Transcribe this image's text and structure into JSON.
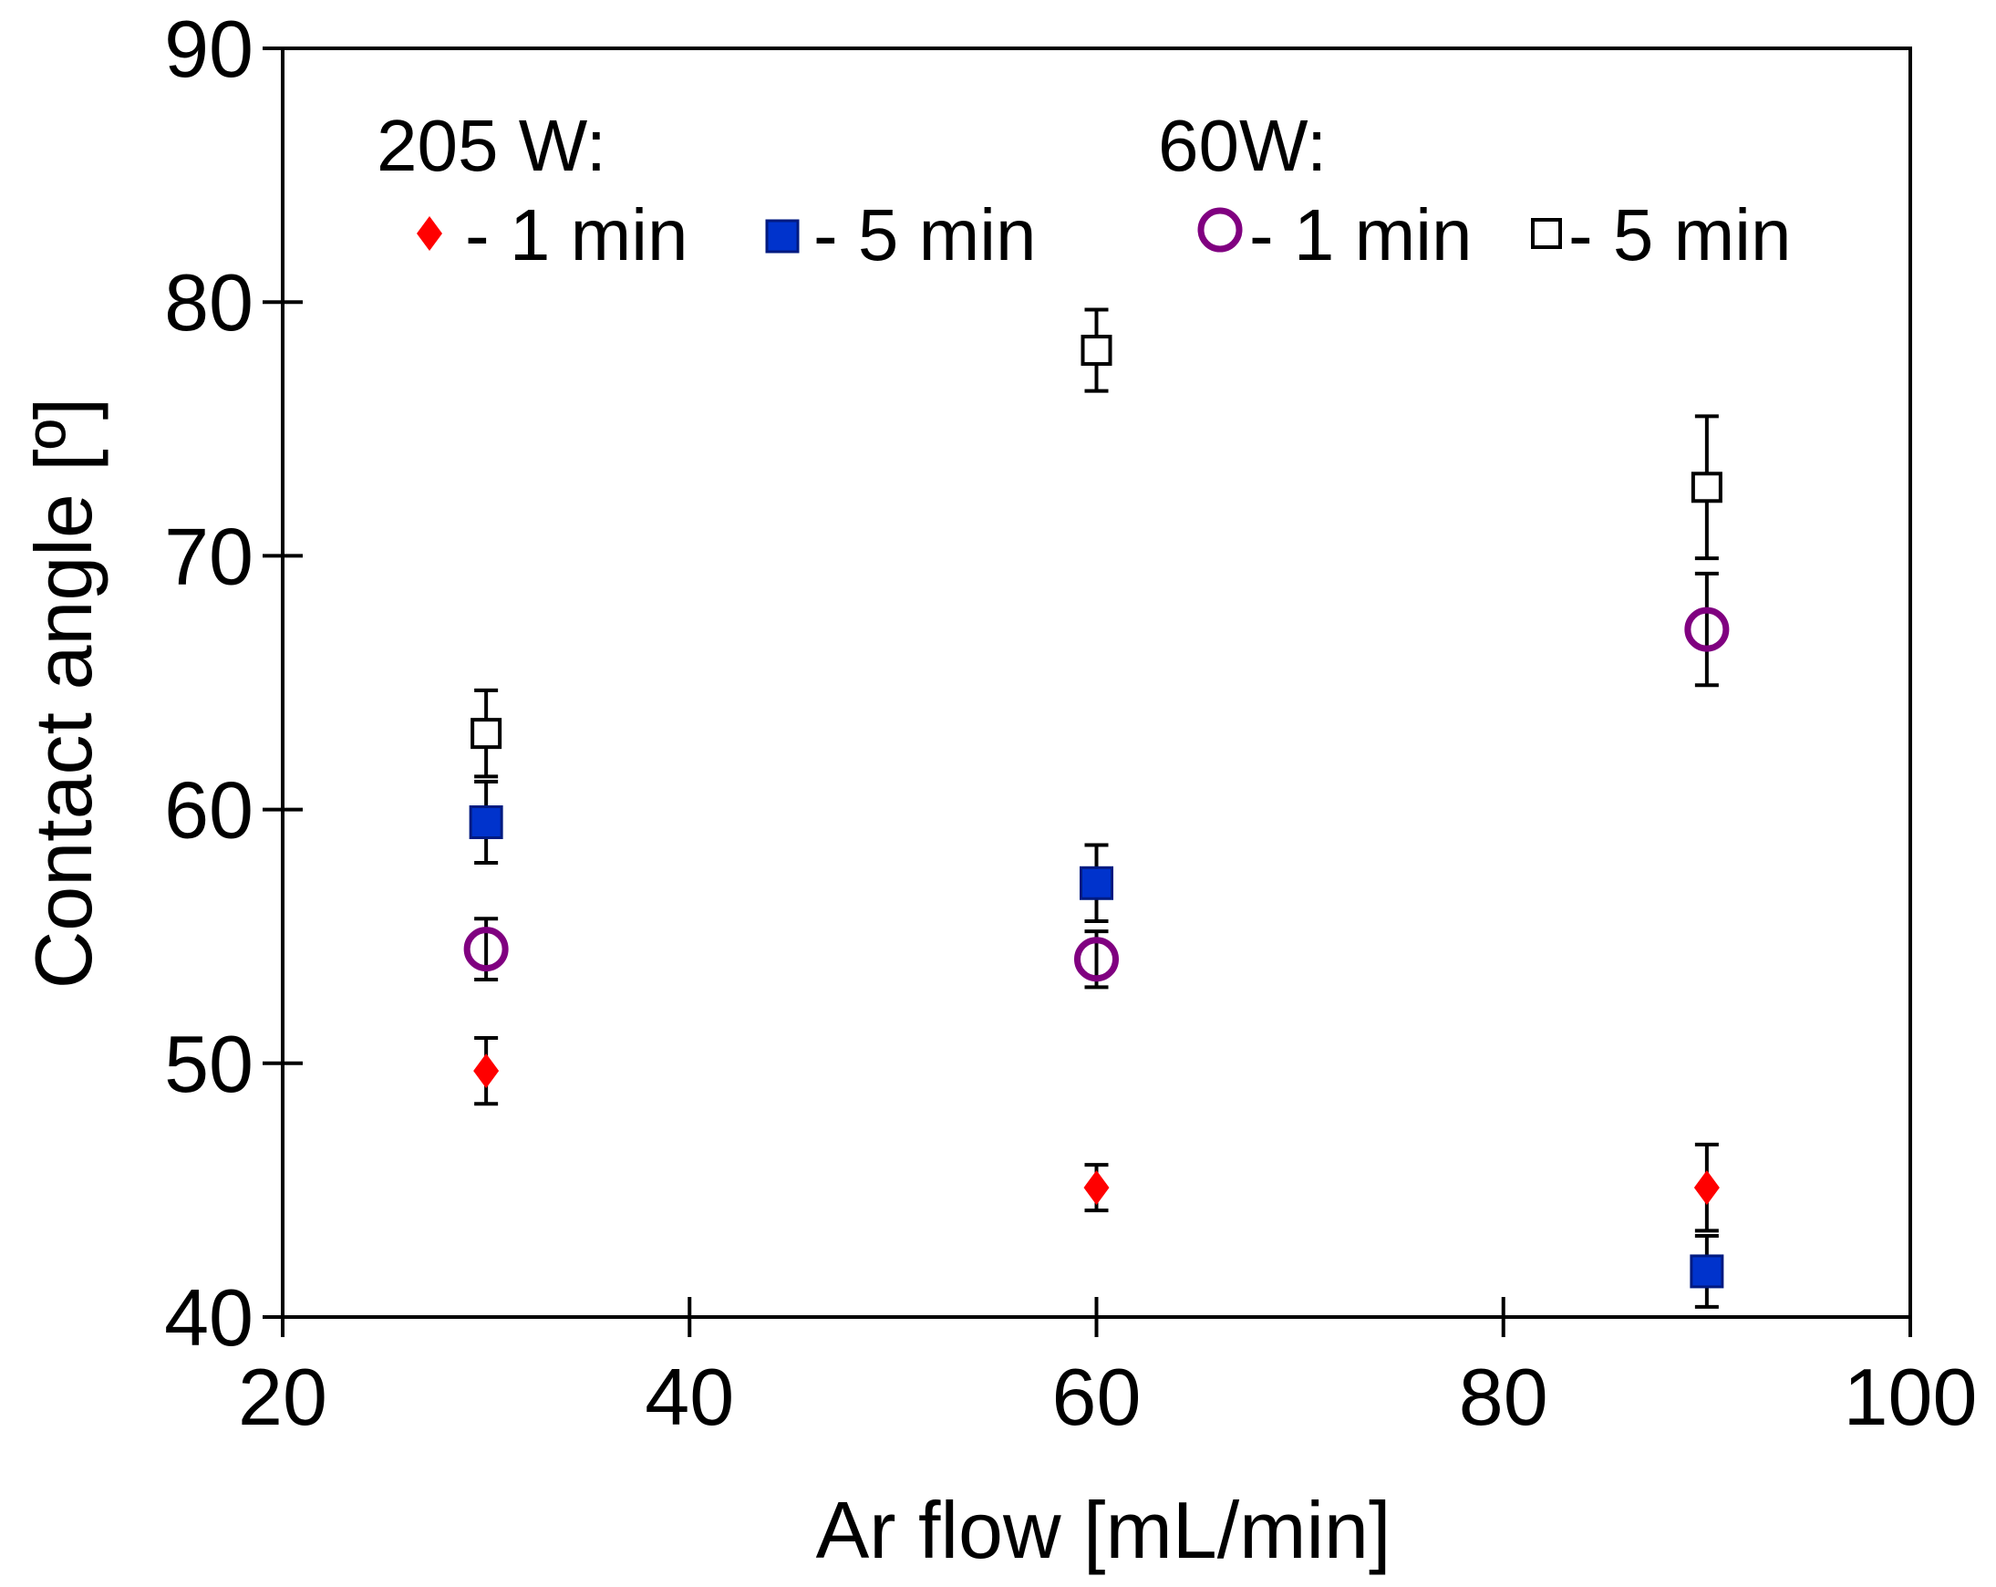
{
  "chart_data": {
    "type": "scatter",
    "title": "",
    "xlabel": "Ar flow [mL/min]",
    "ylabel": "Contact angle [º]",
    "xlim": [
      20,
      100
    ],
    "ylim": [
      40,
      90
    ],
    "xticks": [
      20,
      40,
      60,
      80,
      100
    ],
    "yticks": [
      40,
      50,
      60,
      70,
      80,
      90
    ],
    "grid": false,
    "legend": {
      "groups": [
        {
          "title": "205 W:",
          "entries": [
            "- 1 min",
            "- 5 min"
          ]
        },
        {
          "title": "60W:",
          "entries": [
            "- 1 min",
            "- 5 min"
          ]
        }
      ],
      "placement": "top"
    },
    "series": [
      {
        "name": "205 W - 1 min",
        "marker": "diamond-filled",
        "color": "#ff0000",
        "x": [
          30,
          60,
          90
        ],
        "y": [
          49.7,
          45.1,
          45.1
        ],
        "error": [
          1.3,
          0.9,
          1.7
        ]
      },
      {
        "name": "205 W - 5 min",
        "marker": "square-filled",
        "color": "#0033cc",
        "x": [
          30,
          60,
          90
        ],
        "y": [
          59.5,
          57.1,
          41.8
        ],
        "error": [
          1.6,
          1.5,
          1.4
        ]
      },
      {
        "name": "60W - 1 min",
        "marker": "circle-open",
        "color": "#800080",
        "x": [
          30,
          60,
          90
        ],
        "y": [
          54.5,
          54.1,
          67.1
        ],
        "error": [
          1.2,
          1.1,
          2.2
        ]
      },
      {
        "name": "60W - 5 min",
        "marker": "square-open",
        "color": "#000000",
        "x": [
          30,
          60,
          90
        ],
        "y": [
          63.0,
          78.1,
          72.7
        ],
        "error": [
          1.7,
          1.6,
          2.8
        ]
      }
    ]
  }
}
